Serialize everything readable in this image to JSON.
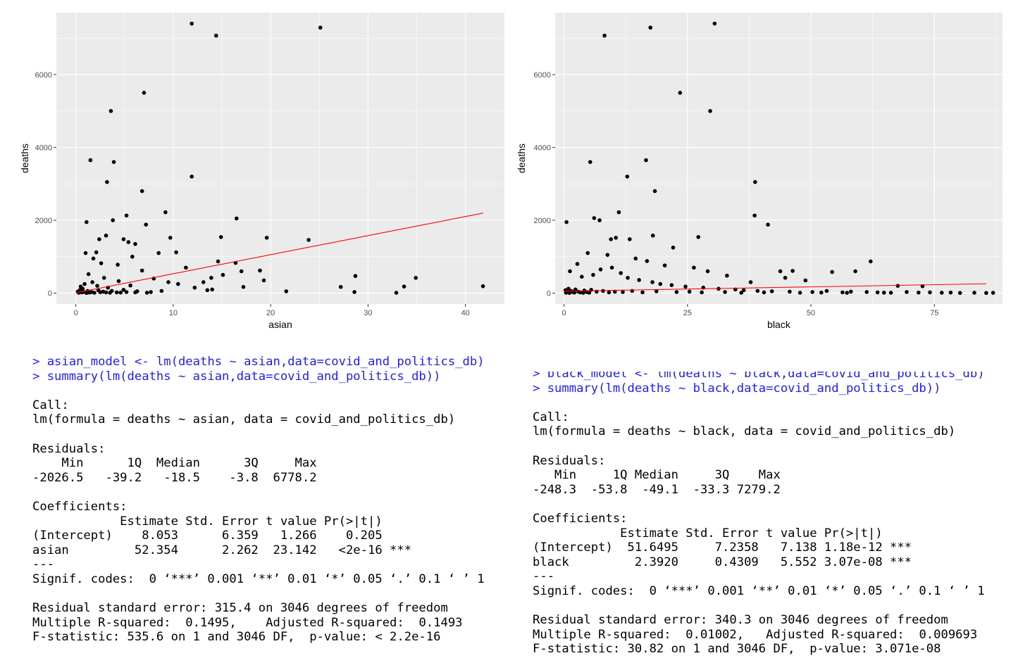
{
  "colors": {
    "panel": "#ebebeb",
    "grid_major": "#ffffff",
    "point": "#000000",
    "fit_line": "#ff0000",
    "command": "#1e1ef0",
    "axis_text": "#4d4d4d"
  },
  "chart_data": [
    {
      "type": "scatter",
      "xlabel": "asian",
      "ylabel": "deaths",
      "xlim": [
        -2,
        44
      ],
      "ylim": [
        -300,
        7700
      ],
      "xticks": [
        0,
        10,
        20,
        30,
        40
      ],
      "yticks": [
        0,
        2000,
        4000,
        6000
      ],
      "grid": true,
      "fit_line": {
        "intercept": 8.053,
        "slope": 52.354,
        "x_range": [
          0,
          41.8
        ]
      },
      "points": [
        [
          11.9,
          7400
        ],
        [
          14.4,
          7070
        ],
        [
          25.1,
          7290
        ],
        [
          7,
          5500
        ],
        [
          3.6,
          5000
        ],
        [
          1.5,
          3650
        ],
        [
          3.9,
          3600
        ],
        [
          11.9,
          3200
        ],
        [
          3.2,
          3050
        ],
        [
          6.8,
          2800
        ],
        [
          9.2,
          2220
        ],
        [
          5.2,
          2130
        ],
        [
          16.5,
          2050
        ],
        [
          3.8,
          2000
        ],
        [
          1.1,
          1950
        ],
        [
          7.2,
          1880
        ],
        [
          2.4,
          1480
        ],
        [
          3.1,
          1580
        ],
        [
          4.9,
          1480
        ],
        [
          5.4,
          1400
        ],
        [
          6.1,
          1350
        ],
        [
          9.7,
          1520
        ],
        [
          14.9,
          1540
        ],
        [
          19.6,
          1520
        ],
        [
          23.9,
          1460
        ],
        [
          2.1,
          1120
        ],
        [
          5.8,
          1000
        ],
        [
          8.5,
          1100
        ],
        [
          10.3,
          1120
        ],
        [
          11.3,
          700
        ],
        [
          13.1,
          300
        ],
        [
          14.6,
          870
        ],
        [
          16.4,
          830
        ],
        [
          17,
          600
        ],
        [
          18.9,
          620
        ],
        [
          19.3,
          350
        ],
        [
          13.9,
          420
        ],
        [
          15.1,
          500
        ],
        [
          17.2,
          170
        ],
        [
          14,
          100
        ],
        [
          21.6,
          50
        ],
        [
          27.2,
          170
        ],
        [
          28.6,
          30
        ],
        [
          28.7,
          470
        ],
        [
          32.9,
          10
        ],
        [
          33.7,
          180
        ],
        [
          34.9,
          420
        ],
        [
          41.8,
          190
        ],
        [
          1,
          1100
        ],
        [
          1.8,
          950
        ],
        [
          2.6,
          820
        ],
        [
          4.3,
          780
        ],
        [
          6.8,
          620
        ],
        [
          8,
          400
        ],
        [
          9.5,
          300
        ],
        [
          10.5,
          250
        ],
        [
          12.2,
          150
        ],
        [
          13.5,
          80
        ],
        [
          6.3,
          50
        ],
        [
          7.7,
          30
        ],
        [
          8.8,
          60
        ],
        [
          4.4,
          330
        ],
        [
          2.9,
          420
        ],
        [
          1.3,
          520
        ],
        [
          0.5,
          180
        ],
        [
          0.9,
          250
        ],
        [
          1.7,
          300
        ],
        [
          2.2,
          200
        ],
        [
          3.3,
          150
        ],
        [
          4.9,
          90
        ],
        [
          5.6,
          210
        ],
        [
          0.2,
          40
        ],
        [
          0.4,
          80
        ],
        [
          0.7,
          120
        ],
        [
          1.2,
          60
        ],
        [
          1.6,
          30
        ],
        [
          2.3,
          80
        ],
        [
          2.8,
          40
        ],
        [
          3.7,
          60
        ],
        [
          4.2,
          20
        ],
        [
          0.3,
          10
        ],
        [
          0.6,
          20
        ],
        [
          0.8,
          30
        ],
        [
          1.1,
          5
        ],
        [
          1.4,
          15
        ],
        [
          1.9,
          10
        ],
        [
          2.5,
          25
        ],
        [
          3.1,
          20
        ],
        [
          3.5,
          10
        ],
        [
          4.6,
          15
        ],
        [
          5.2,
          30
        ],
        [
          6.1,
          20
        ],
        [
          7.3,
          10
        ]
      ]
    },
    {
      "type": "scatter",
      "xlabel": "black",
      "ylabel": "deaths",
      "xlim": [
        -1.8,
        88.8
      ],
      "ylim": [
        -300,
        7700
      ],
      "xticks": [
        0,
        25,
        50,
        75
      ],
      "yticks": [
        0,
        2000,
        4000,
        6000
      ],
      "grid": true,
      "fit_line": {
        "intercept": 51.6495,
        "slope": 2.392,
        "x_range": [
          0,
          85.5
        ]
      },
      "points": [
        [
          30.5,
          7400
        ],
        [
          17.5,
          7290
        ],
        [
          8.2,
          7070
        ],
        [
          23.5,
          5500
        ],
        [
          29.6,
          5000
        ],
        [
          5.3,
          3600
        ],
        [
          16.6,
          3650
        ],
        [
          12.8,
          3200
        ],
        [
          38.7,
          3050
        ],
        [
          18.4,
          2800
        ],
        [
          11.1,
          2220
        ],
        [
          38.6,
          2130
        ],
        [
          41.3,
          1880
        ],
        [
          6.1,
          2060
        ],
        [
          7.2,
          2000
        ],
        [
          0.5,
          1950
        ],
        [
          18,
          1580
        ],
        [
          27.2,
          1540
        ],
        [
          10.5,
          1520
        ],
        [
          13.3,
          1480
        ],
        [
          9.5,
          1480
        ],
        [
          22.1,
          1250
        ],
        [
          4.8,
          1100
        ],
        [
          8.8,
          1050
        ],
        [
          14.5,
          950
        ],
        [
          16.8,
          880
        ],
        [
          20.4,
          760
        ],
        [
          26.3,
          700
        ],
        [
          29.1,
          600
        ],
        [
          33,
          480
        ],
        [
          37.8,
          300
        ],
        [
          43.8,
          600
        ],
        [
          46.3,
          610
        ],
        [
          54.3,
          580
        ],
        [
          59,
          600
        ],
        [
          62.1,
          870
        ],
        [
          67.6,
          200
        ],
        [
          72.6,
          190
        ],
        [
          44.8,
          420
        ],
        [
          48.9,
          350
        ],
        [
          1.2,
          600
        ],
        [
          2.7,
          800
        ],
        [
          3.6,
          450
        ],
        [
          5.9,
          500
        ],
        [
          7.4,
          650
        ],
        [
          9.7,
          700
        ],
        [
          11.5,
          550
        ],
        [
          12.9,
          420
        ],
        [
          15.2,
          360
        ],
        [
          17.9,
          300
        ],
        [
          19.5,
          250
        ],
        [
          21.8,
          220
        ],
        [
          24.6,
          180
        ],
        [
          28.2,
          150
        ],
        [
          31.3,
          120
        ],
        [
          34.7,
          100
        ],
        [
          36.4,
          80
        ],
        [
          39.2,
          60
        ],
        [
          42.1,
          50
        ],
        [
          45.7,
          40
        ],
        [
          50.3,
          30
        ],
        [
          53.2,
          60
        ],
        [
          56.4,
          20
        ],
        [
          58.1,
          40
        ],
        [
          61.3,
          30
        ],
        [
          63.5,
          20
        ],
        [
          66.2,
          10
        ],
        [
          69.4,
          30
        ],
        [
          71.8,
          15
        ],
        [
          74.1,
          20
        ],
        [
          76.5,
          10
        ],
        [
          78.3,
          15
        ],
        [
          80.2,
          5
        ],
        [
          83.1,
          10
        ],
        [
          85.5,
          5
        ],
        [
          86.9,
          8
        ],
        [
          0.3,
          80
        ],
        [
          0.6,
          50
        ],
        [
          0.9,
          120
        ],
        [
          1.4,
          60
        ],
        [
          1.8,
          30
        ],
        [
          2.3,
          100
        ],
        [
          2.9,
          40
        ],
        [
          3.3,
          20
        ],
        [
          4.1,
          70
        ],
        [
          4.6,
          30
        ],
        [
          5.5,
          90
        ],
        [
          6.6,
          40
        ],
        [
          7.9,
          60
        ],
        [
          9.1,
          20
        ],
        [
          10.3,
          40
        ],
        [
          11.9,
          30
        ],
        [
          13.8,
          60
        ],
        [
          15.9,
          20
        ],
        [
          18.7,
          50
        ],
        [
          22.8,
          30
        ],
        [
          25.4,
          40
        ],
        [
          27.9,
          20
        ],
        [
          32.6,
          30
        ],
        [
          35.9,
          10
        ],
        [
          40.5,
          20
        ],
        [
          47.8,
          10
        ],
        [
          52.1,
          15
        ],
        [
          57.3,
          8
        ],
        [
          64.8,
          12
        ],
        [
          0.4,
          10
        ],
        [
          1.1,
          5
        ],
        [
          2.1,
          15
        ],
        [
          3.9,
          8
        ],
        [
          5.1,
          12
        ]
      ]
    }
  ],
  "console_left": {
    "command_lines": [
      "> asian_model <- lm(deaths ~ asian,data=covid_and_politics_db)",
      "> summary(lm(deaths ~ asian,data=covid_and_politics_db))"
    ],
    "output": "\nCall:\nlm(formula = deaths ~ asian, data = covid_and_politics_db)\n\nResiduals:\n    Min      1Q  Median      3Q     Max \n-2026.5   -39.2   -18.5    -3.8  6778.2 \n\nCoefficients:\n            Estimate Std. Error t value Pr(>|t|)    \n(Intercept)    8.053      6.359   1.266    0.205    \nasian         52.354      2.262  23.142   <2e-16 ***\n---\nSignif. codes:  0 ‘***’ 0.001 ‘**’ 0.01 ‘*’ 0.05 ‘.’ 0.1 ‘ ’ 1\n\nResidual standard error: 315.4 on 3046 degrees of freedom\nMultiple R-squared:  0.1495,\tAdjusted R-squared:  0.1493 \nF-statistic: 535.6 on 1 and 3046 DF,  p-value: < 2.2e-16"
  },
  "console_right": {
    "command_lines": [
      "> black_model <- lm(deaths ~ black,data=covid_and_politics_db)",
      "> summary(lm(deaths ~ black,data=covid_and_politics_db))"
    ],
    "output": "\nCall:\nlm(formula = deaths ~ black, data = covid_and_politics_db)\n\nResiduals:\n   Min     1Q Median     3Q    Max \n-248.3  -53.8  -49.1  -33.3 7279.2 \n\nCoefficients:\n            Estimate Std. Error t value Pr(>|t|)    \n(Intercept)  51.6495     7.2358   7.138 1.18e-12 ***\nblack         2.3920     0.4309   5.552 3.07e-08 ***\n---\nSignif. codes:  0 ‘***’ 0.001 ‘**’ 0.01 ‘*’ 0.05 ‘.’ 0.1 ‘ ’ 1\n\nResidual standard error: 340.3 on 3046 degrees of freedom\nMultiple R-squared:  0.01002,\tAdjusted R-squared:  0.009693 \nF-statistic: 30.82 on 1 and 3046 DF,  p-value: 3.071e-08"
  }
}
